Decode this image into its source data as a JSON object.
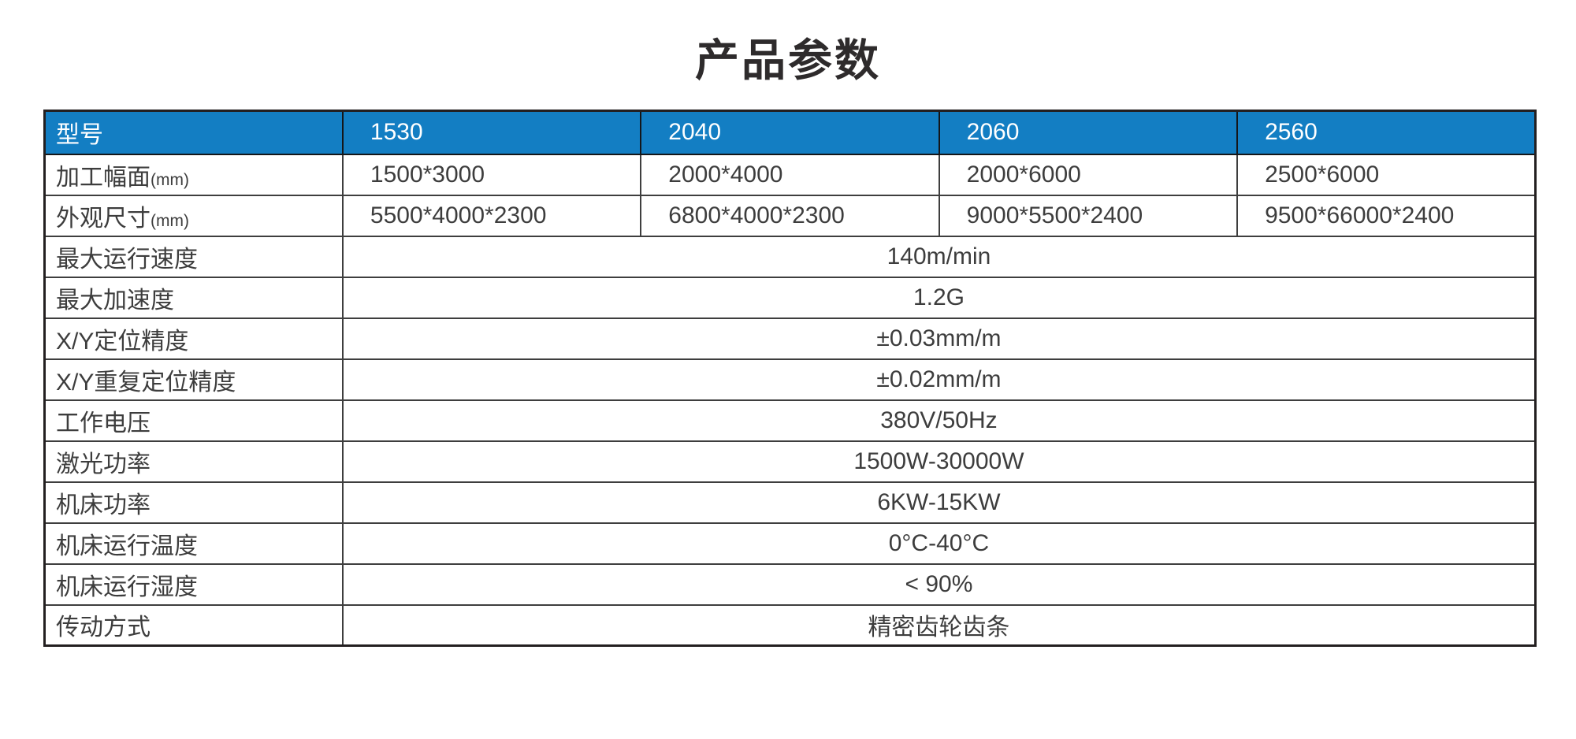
{
  "page": {
    "title": "产品参数"
  },
  "colors": {
    "header_background": "#137ec3",
    "header_text": "#ffffff",
    "body_text": "#3d3d3d",
    "outer_border": "#231f20",
    "inner_border": "#3e3e3e",
    "page_background": "#ffffff"
  },
  "table": {
    "header": {
      "label": "型号",
      "models": [
        "1530",
        "2040",
        "2060",
        "2560"
      ]
    },
    "rows": [
      {
        "label": "加工幅面",
        "unit": "(mm)",
        "values": [
          "1500*3000",
          "2000*4000",
          "2000*6000",
          "2500*6000"
        ]
      },
      {
        "label": "外观尺寸",
        "unit": "(mm)",
        "values": [
          "5500*4000*2300",
          "6800*4000*2300",
          "9000*5500*2400",
          "9500*66000*2400"
        ]
      },
      {
        "label": "最大运行速度",
        "span_value": "140m/min"
      },
      {
        "label": "最大加速度",
        "span_value": "1.2G"
      },
      {
        "label": "X/Y定位精度",
        "span_value": "±0.03mm/m"
      },
      {
        "label": "X/Y重复定位精度",
        "span_value": "±0.02mm/m"
      },
      {
        "label": "工作电压",
        "span_value": "380V/50Hz"
      },
      {
        "label": "激光功率",
        "span_value": "1500W-30000W"
      },
      {
        "label": "机床功率",
        "span_value": "6KW-15KW"
      },
      {
        "label": "机床运行温度",
        "span_value": "0°C-40°C"
      },
      {
        "label": "机床运行湿度",
        "span_value": "< 90%"
      },
      {
        "label": "传动方式",
        "span_value": "精密齿轮齿条"
      }
    ]
  }
}
